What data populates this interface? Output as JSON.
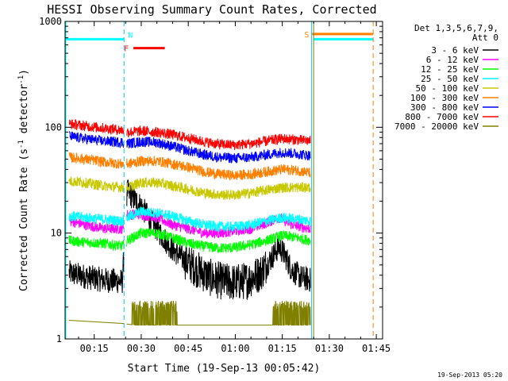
{
  "chart_data": {
    "type": "line",
    "title": "HESSI Observing Summary Count Rates, Corrected",
    "xlabel": "Start Time (19-Sep-13 00:05:42)",
    "ylabel_main": "Corrected Count Rate (s",
    "ylabel_sup1": "-1",
    "ylabel_mid": " detector",
    "ylabel_sup2": "-1",
    "ylabel_end": ")",
    "footer": "19-Sep-2013 05:20",
    "y_scale": "log",
    "ylim": [
      1,
      1000
    ],
    "xlim_minutes": [
      5.7,
      47
    ],
    "x_ticks": [
      {
        "m": 15,
        "label": "00:15"
      },
      {
        "m": 30,
        "label": "00:30"
      },
      {
        "m": 45,
        "label": "00:45"
      },
      {
        "m": 60,
        "label": "01:00"
      },
      {
        "m": 75,
        "label": "01:15"
      },
      {
        "m": 90,
        "label": "01:30"
      },
      {
        "m": 105,
        "label": "01:45"
      }
    ],
    "y_ticks": [
      {
        "v": 1,
        "label": "1"
      },
      {
        "v": 10,
        "label": "10"
      },
      {
        "v": 100,
        "label": "100"
      },
      {
        "v": 1000,
        "label": "1000"
      }
    ],
    "legend": {
      "header1": "Det 1,3,5,6,7,9,",
      "header2": "Att 0",
      "position": "right"
    },
    "annotations": {
      "night": "N",
      "flare": "F",
      "saa": "S"
    },
    "night_flag": {
      "start": 5.7,
      "end": 24.5,
      "level": 680,
      "color": "#00ffff"
    },
    "flare_flag": {
      "start": 27.5,
      "end": 37.5,
      "level": 560,
      "color": "#ff0000"
    },
    "saa_flag": {
      "start": 84.5,
      "end": 104,
      "level": 760,
      "color": "#ff8000"
    },
    "night_flag2": {
      "start": 85,
      "end": 104,
      "level": 680,
      "color": "#00ffff"
    },
    "data_gaps": [
      {
        "start": 24.5,
        "end": 25.3
      },
      {
        "start": 84.0,
        "end": 85.0
      }
    ],
    "vlines": [
      {
        "m": 24.5,
        "color": "#00c8ff",
        "dash": true
      },
      {
        "m": 84.3,
        "color": "#00c8ff",
        "dash": false
      },
      {
        "m": 85.0,
        "color": "#808000",
        "dash": false
      },
      {
        "m": 104,
        "color": "#ff8000",
        "dash": true
      }
    ],
    "x_start_minute": 7,
    "x_end_minute": 84,
    "series": [
      {
        "name": "3 - 6 keV",
        "color": "#000000",
        "values": [
          [
            7,
            4.2
          ],
          [
            12,
            3.9
          ],
          [
            18,
            3.6
          ],
          [
            24,
            3.5
          ],
          [
            25.5,
            25
          ],
          [
            27,
            22
          ],
          [
            30,
            18
          ],
          [
            33,
            13
          ],
          [
            36,
            10
          ],
          [
            40,
            7
          ],
          [
            44,
            5.5
          ],
          [
            48,
            4.5
          ],
          [
            52,
            3.8
          ],
          [
            56,
            3.5
          ],
          [
            60,
            3.4
          ],
          [
            64,
            3.6
          ],
          [
            68,
            4.2
          ],
          [
            71,
            5.5
          ],
          [
            74,
            7.5
          ],
          [
            76,
            6
          ],
          [
            78,
            4.5
          ],
          [
            81,
            3.8
          ],
          [
            84,
            3.6
          ]
        ]
      },
      {
        "name": "6 - 12 keV",
        "color": "#ff00ff",
        "values": [
          [
            7,
            13
          ],
          [
            12,
            12
          ],
          [
            18,
            11
          ],
          [
            24,
            11
          ],
          [
            25.5,
            15
          ],
          [
            30,
            15
          ],
          [
            35,
            14
          ],
          [
            40,
            12
          ],
          [
            45,
            11
          ],
          [
            50,
            10
          ],
          [
            55,
            10
          ],
          [
            60,
            10.5
          ],
          [
            65,
            11
          ],
          [
            70,
            12.5
          ],
          [
            74,
            14
          ],
          [
            78,
            12
          ],
          [
            84,
            11
          ]
        ]
      },
      {
        "name": "12 - 25 keV",
        "color": "#00ff00",
        "values": [
          [
            7,
            8.5
          ],
          [
            12,
            8.2
          ],
          [
            18,
            8
          ],
          [
            24,
            7.5
          ],
          [
            25.5,
            8.5
          ],
          [
            30,
            10
          ],
          [
            35,
            10
          ],
          [
            40,
            9
          ],
          [
            45,
            8
          ],
          [
            50,
            7.5
          ],
          [
            55,
            7.2
          ],
          [
            60,
            7.3
          ],
          [
            65,
            7.8
          ],
          [
            70,
            8.5
          ],
          [
            75,
            9.5
          ],
          [
            80,
            9
          ],
          [
            84,
            8.5
          ]
        ]
      },
      {
        "name": "25 - 50 keV",
        "color": "#00ffff",
        "values": [
          [
            7,
            14.5
          ],
          [
            12,
            14
          ],
          [
            18,
            13.5
          ],
          [
            24,
            13
          ],
          [
            25.5,
            14
          ],
          [
            30,
            16
          ],
          [
            35,
            15.5
          ],
          [
            40,
            14.5
          ],
          [
            45,
            13
          ],
          [
            50,
            12
          ],
          [
            55,
            11.5
          ],
          [
            60,
            11.5
          ],
          [
            65,
            12
          ],
          [
            70,
            13
          ],
          [
            75,
            14
          ],
          [
            80,
            13.5
          ],
          [
            84,
            13
          ]
        ]
      },
      {
        "name": "50 - 100 keV",
        "color": "#c8c800",
        "values": [
          [
            7,
            31
          ],
          [
            12,
            30
          ],
          [
            18,
            28
          ],
          [
            24,
            27
          ],
          [
            25.5,
            27
          ],
          [
            30,
            30
          ],
          [
            35,
            30
          ],
          [
            40,
            28
          ],
          [
            45,
            26
          ],
          [
            50,
            24
          ],
          [
            55,
            23
          ],
          [
            60,
            23
          ],
          [
            65,
            24
          ],
          [
            70,
            25.5
          ],
          [
            75,
            27
          ],
          [
            80,
            27
          ],
          [
            84,
            27
          ]
        ]
      },
      {
        "name": "100 - 300 keV",
        "color": "#ff8000",
        "values": [
          [
            7,
            52
          ],
          [
            12,
            50
          ],
          [
            18,
            47
          ],
          [
            24,
            45
          ],
          [
            25.5,
            45
          ],
          [
            30,
            48
          ],
          [
            35,
            48
          ],
          [
            40,
            45
          ],
          [
            45,
            42
          ],
          [
            50,
            38
          ],
          [
            55,
            36
          ],
          [
            60,
            35
          ],
          [
            65,
            36
          ],
          [
            70,
            38
          ],
          [
            75,
            40
          ],
          [
            80,
            39
          ],
          [
            84,
            37
          ]
        ]
      },
      {
        "name": "300 - 800 keV",
        "color": "#0000ff",
        "values": [
          [
            7,
            82
          ],
          [
            12,
            78
          ],
          [
            18,
            74
          ],
          [
            24,
            72
          ],
          [
            25.5,
            70
          ],
          [
            30,
            73
          ],
          [
            35,
            72
          ],
          [
            40,
            66
          ],
          [
            45,
            60
          ],
          [
            50,
            55
          ],
          [
            55,
            52
          ],
          [
            60,
            51
          ],
          [
            65,
            52
          ],
          [
            70,
            55
          ],
          [
            75,
            58
          ],
          [
            80,
            56
          ],
          [
            84,
            54
          ]
        ]
      },
      {
        "name": "800 - 7000 keV",
        "color": "#ff0000",
        "values": [
          [
            7,
            108
          ],
          [
            12,
            103
          ],
          [
            18,
            98
          ],
          [
            24,
            94
          ],
          [
            25.5,
            90
          ],
          [
            30,
            92
          ],
          [
            35,
            90
          ],
          [
            40,
            85
          ],
          [
            45,
            79
          ],
          [
            50,
            73
          ],
          [
            55,
            69
          ],
          [
            60,
            68
          ],
          [
            65,
            70
          ],
          [
            70,
            74
          ],
          [
            75,
            78
          ],
          [
            80,
            76
          ],
          [
            84,
            74
          ]
        ]
      },
      {
        "name": "7000 - 20000 keV",
        "color": "#808000",
        "values": [
          [
            7,
            1.5
          ],
          [
            24,
            1.4
          ],
          [
            28,
            1.35
          ],
          [
            41,
            1.35
          ],
          [
            72,
            1.35
          ],
          [
            84,
            1.35
          ]
        ]
      }
    ]
  }
}
